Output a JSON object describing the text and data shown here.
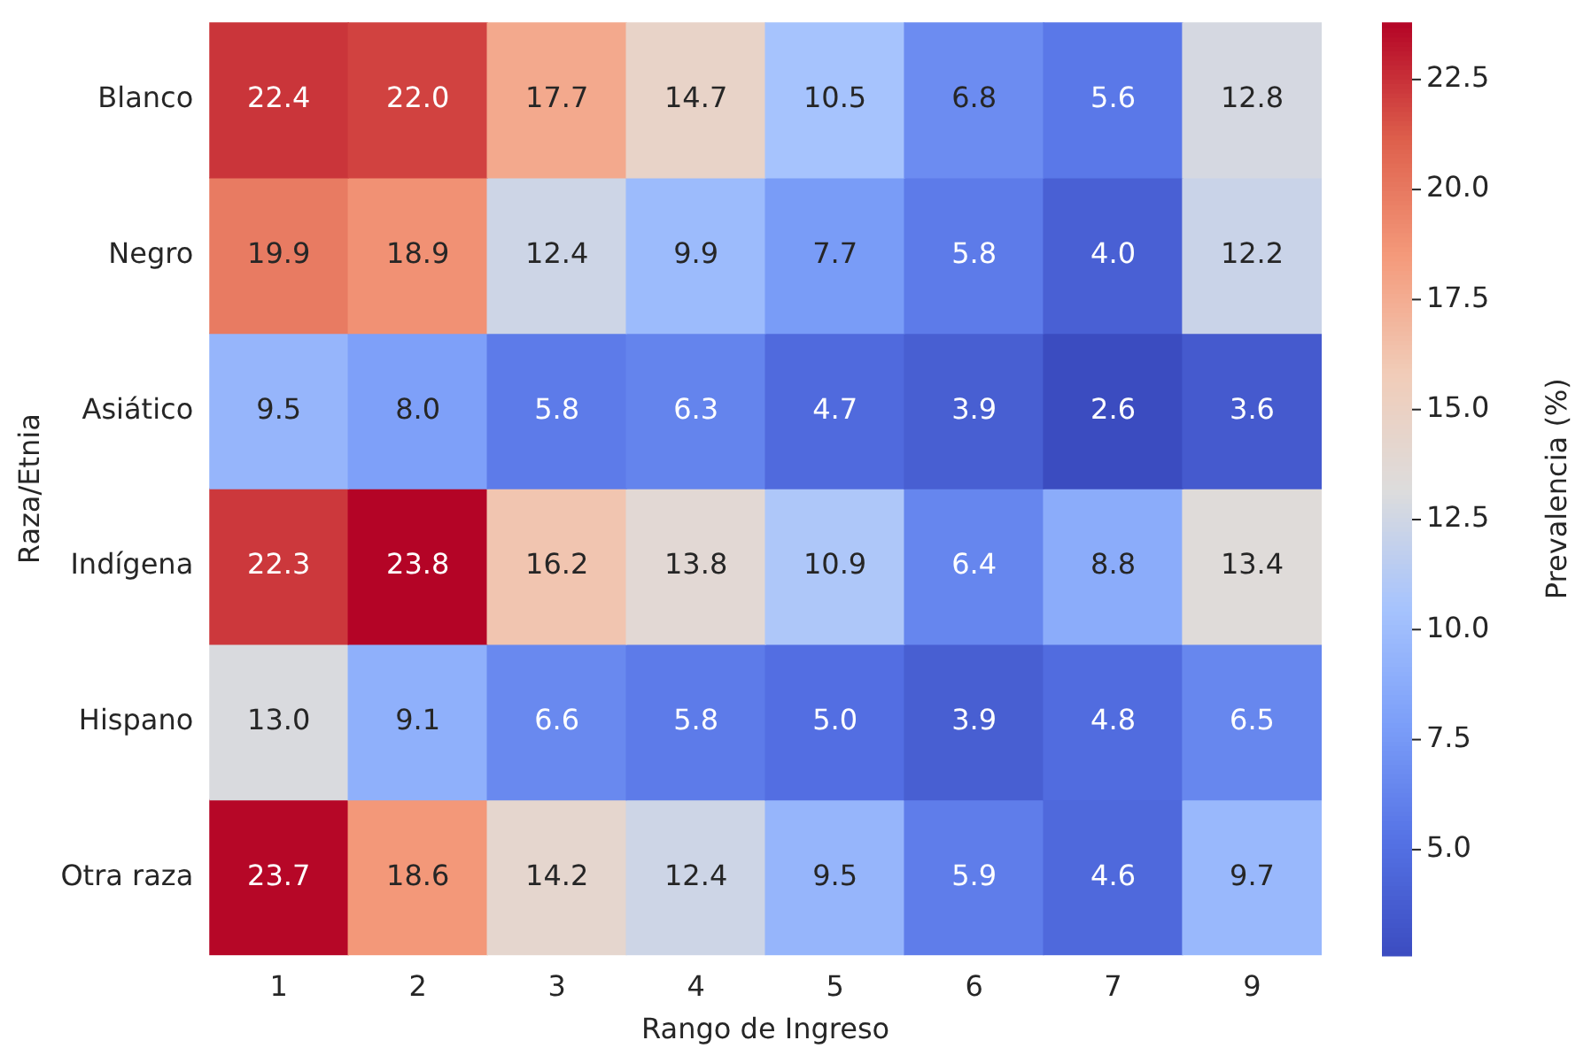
{
  "chart_data": {
    "type": "heatmap",
    "xlabel": "Rango de Ingreso",
    "ylabel": "Raza/Etnia",
    "clabel": "Prevalencia (%)",
    "categories": [
      "1",
      "2",
      "3",
      "4",
      "5",
      "6",
      "7",
      "9"
    ],
    "y_categories": [
      "Blanco",
      "Negro",
      "Asiático",
      "Indígena",
      "Hispano",
      "Otra raza"
    ],
    "cells": [
      [
        22.4,
        22.0,
        17.7,
        14.7,
        10.5,
        6.8,
        5.6,
        12.8
      ],
      [
        19.9,
        18.9,
        12.4,
        9.9,
        7.7,
        5.8,
        4.0,
        12.2
      ],
      [
        9.5,
        8.0,
        5.8,
        6.3,
        4.7,
        3.9,
        2.6,
        3.6
      ],
      [
        22.3,
        23.8,
        16.2,
        13.8,
        10.9,
        6.4,
        8.8,
        13.4
      ],
      [
        13.0,
        9.1,
        6.6,
        5.8,
        5.0,
        3.9,
        4.8,
        6.5
      ],
      [
        23.7,
        18.6,
        14.2,
        12.4,
        9.5,
        5.9,
        4.6,
        9.7
      ]
    ],
    "cell_labels": [
      [
        "22.4",
        "22.0",
        "17.7",
        "14.7",
        "10.5",
        "6.8",
        "5.6",
        "12.8"
      ],
      [
        "19.9",
        "18.9",
        "12.4",
        "9.9",
        "7.7",
        "5.8",
        "4.0",
        "12.2"
      ],
      [
        "9.5",
        "8.0",
        "5.8",
        "6.3",
        "4.7",
        "3.9",
        "2.6",
        "3.6"
      ],
      [
        "22.3",
        "23.8",
        "16.2",
        "13.8",
        "10.9",
        "6.4",
        "8.8",
        "13.4"
      ],
      [
        "13.0",
        "9.1",
        "6.6",
        "5.8",
        "5.0",
        "3.9",
        "4.8",
        "6.5"
      ],
      [
        "23.7",
        "18.6",
        "14.2",
        "12.4",
        "9.5",
        "5.9",
        "4.6",
        "9.7"
      ]
    ],
    "clim": [
      2.6,
      23.8
    ],
    "cticks": [
      {
        "value": 5,
        "label": "5.0"
      },
      7.5,
      {
        "value": 10,
        "label": "10.0"
      },
      12.5,
      {
        "value": 15,
        "label": "15.0"
      },
      17.5,
      {
        "value": 20,
        "label": "20.0"
      },
      22.5
    ]
  }
}
